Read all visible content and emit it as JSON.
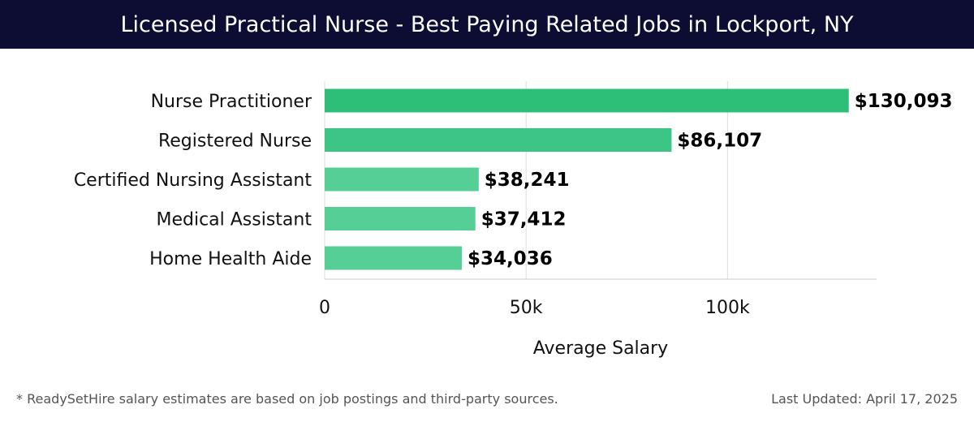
{
  "header": {
    "title": "Licensed Practical Nurse - Best Paying Related Jobs in Lockport, NY"
  },
  "colors": {
    "header_bg": "#0d0d33",
    "bar_top": "#2dbf78",
    "bar_mid": "#3cc586",
    "bar_light": "#55cf96",
    "grid": "#dddddd",
    "label": "#111111"
  },
  "chart_data": {
    "type": "bar",
    "orientation": "horizontal",
    "categories": [
      "Nurse Practitioner",
      "Registered Nurse",
      "Certified Nursing Assistant",
      "Medical Assistant",
      "Home Health Aide"
    ],
    "values": [
      130093,
      86107,
      38241,
      37412,
      34036
    ],
    "value_labels": [
      "$130,093",
      "$86,107",
      "$38,241",
      "$37,412",
      "$34,036"
    ],
    "xlabel": "Average Salary",
    "xlim": [
      0,
      137000
    ],
    "xticks": [
      0,
      50000,
      100000
    ],
    "xtick_labels": [
      "0",
      "50k",
      "100k"
    ],
    "grid": true
  },
  "footer": {
    "note": "* ReadySetHire salary estimates are based on job postings and third-party sources.",
    "updated": "Last Updated: April 17, 2025"
  }
}
